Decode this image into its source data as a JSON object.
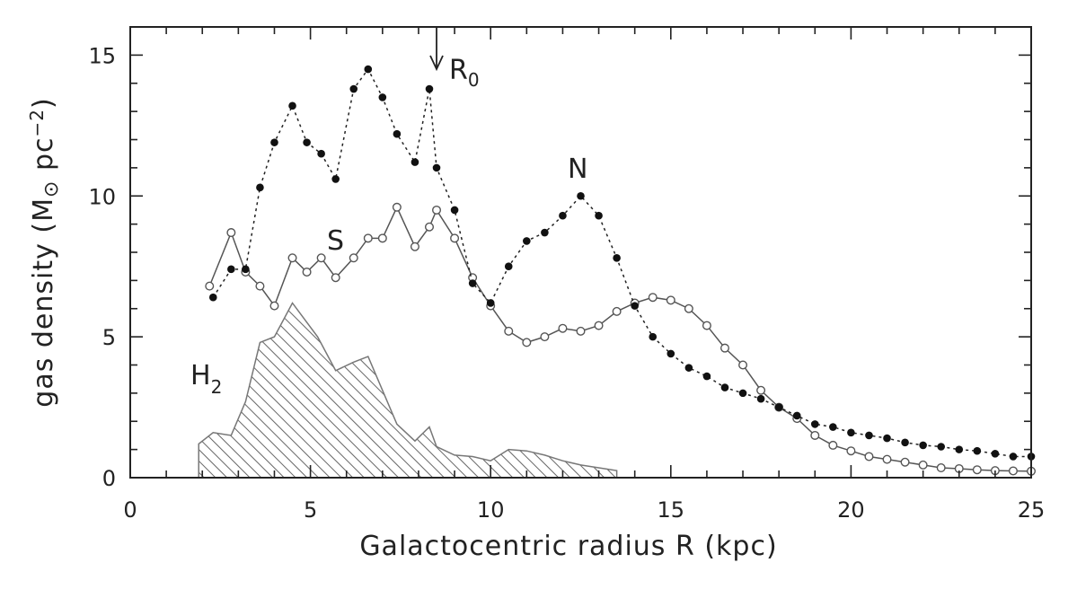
{
  "chart_data": {
    "type": "line",
    "xlabel": "Galactocentric radius R (kpc)",
    "ylabel_main": "gas density (M",
    "ylabel_sun": "⊙",
    "ylabel_unit": " pc",
    "ylabel_exp": "−2",
    "ylabel_close": ")",
    "xlim": [
      0,
      25
    ],
    "ylim": [
      0,
      16
    ],
    "x_ticks": [
      0,
      5,
      10,
      15,
      20,
      25
    ],
    "y_ticks": [
      0,
      5,
      10,
      15
    ],
    "annotations": {
      "r0_main": "R",
      "r0_sub": "0",
      "r0_x": 8.5,
      "n_label": "N",
      "s_label": "S",
      "h2_main": "H",
      "h2_sub": "2"
    },
    "series": [
      {
        "key": "N",
        "name": "N",
        "style": "dotted-filled",
        "x": [
          2.3,
          2.8,
          3.2,
          3.6,
          4.0,
          4.5,
          4.9,
          5.3,
          5.7,
          6.2,
          6.6,
          7.0,
          7.4,
          7.9,
          8.3,
          8.5,
          9.0,
          9.5,
          10.0,
          10.5,
          11.0,
          11.5,
          12.0,
          12.5,
          13.0,
          13.5,
          14.0,
          14.5,
          15.0,
          15.5,
          16.0,
          16.5,
          17.0,
          17.5,
          18.0,
          18.5,
          19.0,
          19.5,
          20.0,
          20.5,
          21.0,
          21.5,
          22.0,
          22.5,
          23.0,
          23.5,
          24.0,
          24.5,
          25.0
        ],
        "y": [
          6.4,
          7.4,
          7.4,
          10.3,
          11.9,
          13.2,
          11.9,
          11.5,
          10.6,
          13.8,
          14.5,
          13.5,
          12.2,
          11.2,
          13.8,
          11.0,
          9.5,
          6.9,
          6.2,
          7.5,
          8.4,
          8.7,
          9.3,
          10.0,
          9.3,
          7.8,
          6.1,
          5.0,
          4.4,
          3.9,
          3.6,
          3.2,
          3.0,
          2.8,
          2.5,
          2.2,
          1.9,
          1.8,
          1.6,
          1.5,
          1.4,
          1.25,
          1.15,
          1.1,
          1.0,
          0.95,
          0.85,
          0.75,
          0.75
        ]
      },
      {
        "key": "S",
        "name": "S",
        "style": "solid-open",
        "x": [
          2.2,
          2.8,
          3.2,
          3.6,
          4.0,
          4.5,
          4.9,
          5.3,
          5.7,
          6.2,
          6.6,
          7.0,
          7.4,
          7.9,
          8.3,
          8.5,
          9.0,
          9.5,
          10.0,
          10.5,
          11.0,
          11.5,
          12.0,
          12.5,
          13.0,
          13.5,
          14.0,
          14.5,
          15.0,
          15.5,
          16.0,
          16.5,
          17.0,
          17.5,
          18.0,
          18.5,
          19.0,
          19.5,
          20.0,
          20.5,
          21.0,
          21.5,
          22.0,
          22.5,
          23.0,
          23.5,
          24.0,
          24.5,
          25.0
        ],
        "y": [
          6.8,
          8.7,
          7.3,
          6.8,
          6.1,
          7.8,
          7.3,
          7.8,
          7.1,
          7.8,
          8.5,
          8.5,
          9.6,
          8.2,
          8.9,
          9.5,
          8.5,
          7.1,
          6.1,
          5.2,
          4.8,
          5.0,
          5.3,
          5.2,
          5.4,
          5.9,
          6.2,
          6.4,
          6.3,
          6.0,
          5.4,
          4.6,
          4.0,
          3.1,
          2.5,
          2.1,
          1.5,
          1.15,
          0.95,
          0.75,
          0.65,
          0.55,
          0.45,
          0.35,
          0.32,
          0.28,
          0.25,
          0.24,
          0.23
        ]
      },
      {
        "key": "H2",
        "name": "H2",
        "style": "hatched-area",
        "x": [
          1.9,
          2.3,
          2.8,
          3.2,
          3.6,
          4.0,
          4.5,
          5.2,
          5.7,
          6.2,
          6.6,
          7.4,
          7.9,
          8.3,
          8.5,
          9.0,
          9.5,
          10.0,
          10.5,
          11.0,
          11.5,
          12.0,
          12.5,
          13.0,
          13.5
        ],
        "y": [
          1.2,
          1.6,
          1.5,
          2.7,
          4.8,
          5.0,
          6.2,
          5.0,
          3.8,
          4.1,
          4.3,
          1.9,
          1.3,
          1.8,
          1.1,
          0.8,
          0.75,
          0.6,
          1.0,
          0.95,
          0.8,
          0.6,
          0.45,
          0.35,
          0.25
        ]
      }
    ]
  }
}
